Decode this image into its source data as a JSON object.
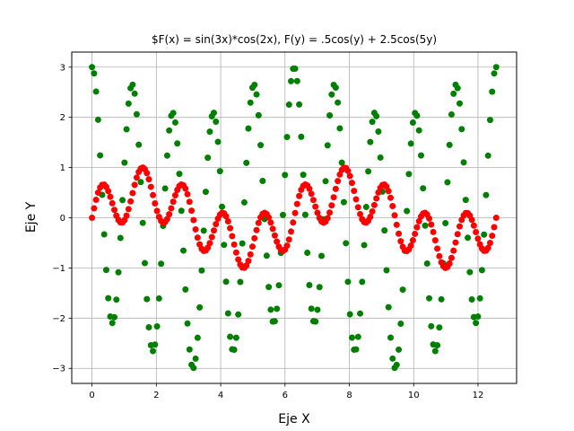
{
  "chart_data": {
    "type": "scatter",
    "title": "$F(x) = sin(3x)*cos(2x), F(y) = .5cos(y) + 2.5cos(5y)",
    "xlabel": "Eje X",
    "ylabel": "Eje Y",
    "xlim": [
      -0.63,
      13.2
    ],
    "ylim": [
      -3.3,
      3.3
    ],
    "xticks": [
      0,
      2,
      4,
      6,
      8,
      10,
      12
    ],
    "yticks": [
      -3,
      -2,
      -1,
      0,
      1,
      2,
      3
    ],
    "grid": true,
    "x_range": [
      0,
      12.566
    ],
    "n_points": 200,
    "series": [
      {
        "color": "#008000",
        "expression": "0.5*cos(x) + 2.5*cos(5x)"
      },
      {
        "color": "#ff0000",
        "expression": "sin(3x)*cos(2x)"
      }
    ]
  }
}
